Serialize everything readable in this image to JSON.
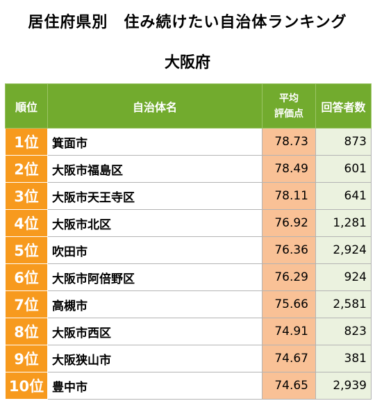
{
  "title": "居住府県別　住み続けたい自治体ランキング",
  "subtitle": "大阪府",
  "headers": {
    "rank": "順位",
    "name": "自治体名",
    "score_line1": "平均",
    "score_line2": "評価点",
    "count": "回答者数"
  },
  "rows": [
    {
      "rank": "1位",
      "name": "箕面市",
      "score": "78.73",
      "count": "873"
    },
    {
      "rank": "2位",
      "name": "大阪市福島区",
      "score": "78.49",
      "count": "601"
    },
    {
      "rank": "3位",
      "name": "大阪市天王寺区",
      "score": "78.11",
      "count": "641"
    },
    {
      "rank": "4位",
      "name": "大阪市北区",
      "score": "76.92",
      "count": "1,281"
    },
    {
      "rank": "5位",
      "name": "吹田市",
      "score": "76.36",
      "count": "2,924"
    },
    {
      "rank": "6位",
      "name": "大阪市阿倍野区",
      "score": "76.29",
      "count": "924"
    },
    {
      "rank": "7位",
      "name": "高槻市",
      "score": "75.66",
      "count": "2,581"
    },
    {
      "rank": "8位",
      "name": "大阪市西区",
      "score": "74.91",
      "count": "823"
    },
    {
      "rank": "9位",
      "name": "大阪狭山市",
      "score": "74.67",
      "count": "381"
    },
    {
      "rank": "10位",
      "name": "豊中市",
      "score": "74.65",
      "count": "2,939"
    }
  ],
  "colors": {
    "header_green": "#72ab2e",
    "rank_orange": "#f79a1e",
    "score_peach": "#f9c196",
    "count_lightgreen": "#ebf2df"
  }
}
